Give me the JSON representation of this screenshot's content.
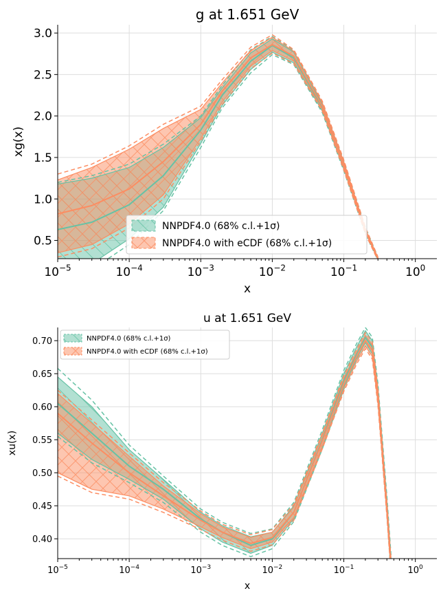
{
  "colors": {
    "teal": "#66c2a5",
    "orange": "#fc8d62"
  },
  "chart_data": [
    {
      "type": "line",
      "title": "g at 1.651 GeV",
      "xlabel": "x",
      "ylabel": "xg(x)",
      "xscale": "log",
      "xlim": [
        1e-05,
        2
      ],
      "ylim": [
        0.28,
        3.1
      ],
      "xticks": [
        {
          "value": 1e-05,
          "base": "10",
          "exp": "−5"
        },
        {
          "value": 0.0001,
          "base": "10",
          "exp": "−4"
        },
        {
          "value": 0.001,
          "base": "10",
          "exp": "−3"
        },
        {
          "value": 0.01,
          "base": "10",
          "exp": "−2"
        },
        {
          "value": 0.1,
          "base": "10",
          "exp": "−1"
        },
        {
          "value": 1,
          "base": "10",
          "exp": "0"
        }
      ],
      "yticks": [
        {
          "value": 0.5,
          "label": "0.5"
        },
        {
          "value": 1.0,
          "label": "1.0"
        },
        {
          "value": 1.5,
          "label": "1.5"
        },
        {
          "value": 2.0,
          "label": "2.0"
        },
        {
          "value": 2.5,
          "label": "2.5"
        },
        {
          "value": 3.0,
          "label": "3.0"
        }
      ],
      "grid": true,
      "legend": "lower-center",
      "series": [
        {
          "name": "NNPDF4.0 (68% c.l.+1σ)",
          "color": "#66c2a5",
          "x": [
            1e-05,
            3e-05,
            0.0001,
            0.0003,
            0.001,
            0.002,
            0.005,
            0.01,
            0.02,
            0.05,
            0.1,
            0.2,
            0.3
          ],
          "central": [
            0.63,
            0.72,
            0.93,
            1.28,
            1.83,
            2.25,
            2.66,
            2.85,
            2.7,
            2.1,
            1.4,
            0.62,
            0.28
          ],
          "band_low": [
            0.1,
            0.22,
            0.52,
            0.9,
            1.67,
            2.13,
            2.56,
            2.77,
            2.64,
            2.06,
            1.36,
            0.6,
            0.27
          ],
          "band_high": [
            1.18,
            1.25,
            1.38,
            1.62,
            1.98,
            2.34,
            2.76,
            2.93,
            2.77,
            2.14,
            1.44,
            0.64,
            0.29
          ],
          "limit_low": [
            0.05,
            0.15,
            0.45,
            0.86,
            1.62,
            2.1,
            2.52,
            2.74,
            2.62,
            2.04,
            1.34,
            0.58,
            0.26
          ],
          "limit_high": [
            1.2,
            1.28,
            1.42,
            1.66,
            2.0,
            2.37,
            2.8,
            2.96,
            2.79,
            2.16,
            1.46,
            0.66,
            0.3
          ]
        },
        {
          "name": "NNPDF4.0 with eCDF (68% c.l.+1σ)",
          "color": "#fc8d62",
          "x": [
            1e-05,
            3e-05,
            0.0001,
            0.0003,
            0.001,
            0.002,
            0.005,
            0.01,
            0.02,
            0.05,
            0.1,
            0.2,
            0.3
          ],
          "central": [
            0.82,
            0.92,
            1.12,
            1.45,
            1.9,
            2.3,
            2.7,
            2.86,
            2.72,
            2.12,
            1.41,
            0.62,
            0.28
          ],
          "band_low": [
            0.35,
            0.45,
            0.7,
            1.05,
            1.73,
            2.17,
            2.6,
            2.79,
            2.66,
            2.08,
            1.37,
            0.6,
            0.27
          ],
          "band_high": [
            1.23,
            1.38,
            1.6,
            1.85,
            2.08,
            2.4,
            2.79,
            2.95,
            2.78,
            2.16,
            1.45,
            0.64,
            0.29
          ],
          "limit_low": [
            0.3,
            0.4,
            0.65,
            1.0,
            1.7,
            2.14,
            2.57,
            2.76,
            2.63,
            2.06,
            1.35,
            0.58,
            0.26
          ],
          "limit_high": [
            1.3,
            1.42,
            1.64,
            1.9,
            2.12,
            2.44,
            2.83,
            2.98,
            2.8,
            2.18,
            1.47,
            0.66,
            0.3
          ]
        }
      ]
    },
    {
      "type": "line",
      "title": "u at 1.651 GeV",
      "xlabel": "x",
      "ylabel": "xu(x)",
      "xscale": "log",
      "xlim": [
        1e-05,
        2
      ],
      "ylim": [
        0.37,
        0.72
      ],
      "xticks": [
        {
          "value": 1e-05,
          "base": "10",
          "exp": "−5"
        },
        {
          "value": 0.0001,
          "base": "10",
          "exp": "−4"
        },
        {
          "value": 0.001,
          "base": "10",
          "exp": "−3"
        },
        {
          "value": 0.01,
          "base": "10",
          "exp": "−2"
        },
        {
          "value": 0.1,
          "base": "10",
          "exp": "−1"
        },
        {
          "value": 1,
          "base": "10",
          "exp": "0"
        }
      ],
      "yticks": [
        {
          "value": 0.4,
          "label": "0.40"
        },
        {
          "value": 0.45,
          "label": "0.45"
        },
        {
          "value": 0.5,
          "label": "0.50"
        },
        {
          "value": 0.55,
          "label": "0.55"
        },
        {
          "value": 0.6,
          "label": "0.60"
        },
        {
          "value": 0.65,
          "label": "0.65"
        },
        {
          "value": 0.7,
          "label": "0.70"
        }
      ],
      "grid": true,
      "legend": "top-left",
      "series": [
        {
          "name": "NNPDF4.0 (68% c.l.+1σ)",
          "color": "#66c2a5",
          "x": [
            1e-05,
            3e-05,
            0.0001,
            0.0003,
            0.001,
            0.002,
            0.005,
            0.01,
            0.02,
            0.05,
            0.1,
            0.15,
            0.2,
            0.25,
            0.3,
            0.4,
            0.5
          ],
          "central": [
            0.605,
            0.56,
            0.51,
            0.475,
            0.43,
            0.41,
            0.39,
            0.4,
            0.44,
            0.55,
            0.64,
            0.68,
            0.705,
            0.69,
            0.62,
            0.45,
            0.3
          ],
          "band_low": [
            0.56,
            0.52,
            0.49,
            0.46,
            0.415,
            0.395,
            0.378,
            0.39,
            0.43,
            0.54,
            0.63,
            0.672,
            0.697,
            0.68,
            0.61,
            0.44,
            0.29
          ],
          "band_high": [
            0.645,
            0.6,
            0.535,
            0.49,
            0.44,
            0.42,
            0.403,
            0.41,
            0.45,
            0.56,
            0.65,
            0.69,
            0.715,
            0.7,
            0.63,
            0.46,
            0.31
          ],
          "limit_low": [
            0.555,
            0.515,
            0.485,
            0.455,
            0.41,
            0.39,
            0.373,
            0.385,
            0.426,
            0.536,
            0.626,
            0.668,
            0.692,
            0.676,
            0.606,
            0.436,
            0.286
          ],
          "limit_high": [
            0.658,
            0.61,
            0.542,
            0.495,
            0.445,
            0.425,
            0.408,
            0.415,
            0.455,
            0.565,
            0.655,
            0.695,
            0.72,
            0.705,
            0.635,
            0.465,
            0.315
          ]
        },
        {
          "name": "NNPDF4.0 with eCDF (68% c.l.+1σ)",
          "color": "#fc8d62",
          "x": [
            1e-05,
            3e-05,
            0.0001,
            0.0003,
            0.001,
            0.002,
            0.005,
            0.01,
            0.02,
            0.05,
            0.1,
            0.15,
            0.2,
            0.25,
            0.3,
            0.4,
            0.5
          ],
          "central": [
            0.59,
            0.545,
            0.5,
            0.465,
            0.428,
            0.41,
            0.393,
            0.402,
            0.44,
            0.548,
            0.635,
            0.675,
            0.7,
            0.685,
            0.615,
            0.445,
            0.3
          ],
          "band_low": [
            0.5,
            0.475,
            0.465,
            0.445,
            0.418,
            0.402,
            0.385,
            0.395,
            0.432,
            0.54,
            0.627,
            0.668,
            0.692,
            0.676,
            0.606,
            0.438,
            0.292
          ],
          "band_high": [
            0.62,
            0.575,
            0.525,
            0.48,
            0.438,
            0.418,
            0.402,
            0.41,
            0.448,
            0.556,
            0.643,
            0.682,
            0.708,
            0.694,
            0.624,
            0.452,
            0.306
          ],
          "limit_low": [
            0.495,
            0.47,
            0.46,
            0.44,
            0.414,
            0.398,
            0.381,
            0.391,
            0.428,
            0.536,
            0.623,
            0.664,
            0.688,
            0.672,
            0.602,
            0.434,
            0.288
          ],
          "limit_high": [
            0.625,
            0.58,
            0.53,
            0.485,
            0.442,
            0.422,
            0.406,
            0.414,
            0.452,
            0.56,
            0.647,
            0.686,
            0.712,
            0.698,
            0.628,
            0.456,
            0.31
          ]
        }
      ]
    }
  ]
}
